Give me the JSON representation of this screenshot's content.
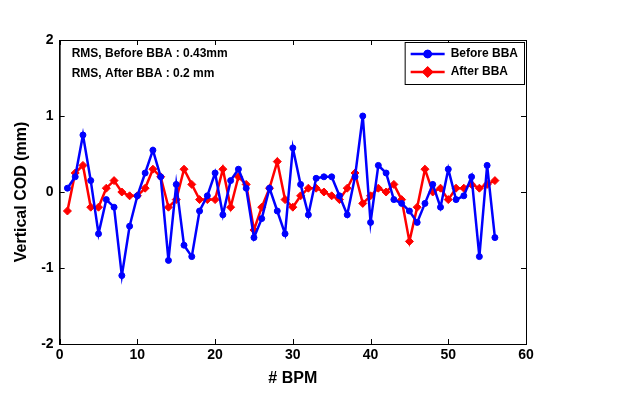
{
  "chart_data": {
    "type": "line",
    "x_label": "# BPM",
    "y_label": "Vertical COD (mm)",
    "annotations": [
      "RMS, Before BBA : 0.43mm",
      "RMS, After BBA : 0.2 mm"
    ],
    "x": [
      1,
      2,
      3,
      4,
      5,
      6,
      7,
      8,
      9,
      10,
      11,
      12,
      13,
      14,
      15,
      16,
      17,
      18,
      19,
      20,
      21,
      22,
      23,
      24,
      25,
      26,
      27,
      28,
      29,
      30,
      31,
      32,
      33,
      34,
      35,
      36,
      37,
      38,
      39,
      40,
      41,
      42,
      43,
      44,
      45,
      46,
      47,
      48,
      49,
      50,
      51,
      52,
      53,
      54,
      55,
      56
    ],
    "series": [
      {
        "name": "Before BBA",
        "color": "#0000ff",
        "marker": "circle",
        "line_style": "solid",
        "values": [
          0.05,
          0.2,
          0.75,
          0.15,
          -0.55,
          -0.1,
          -0.2,
          -1.1,
          -0.45,
          -0.05,
          0.25,
          0.55,
          0.2,
          -0.9,
          0.1,
          -0.7,
          -0.85,
          -0.25,
          -0.05,
          0.25,
          -0.3,
          0.15,
          0.3,
          0.05,
          -0.6,
          -0.35,
          0.05,
          -0.25,
          -0.55,
          0.58,
          0.1,
          -0.3,
          0.18,
          0.2,
          0.2,
          -0.05,
          -0.3,
          0.2,
          1.0,
          -0.4,
          0.35,
          0.25,
          -0.1,
          -0.15,
          -0.25,
          -0.4,
          -0.15,
          0.1,
          -0.2,
          0.3,
          -0.1,
          -0.05,
          0.2,
          -0.85,
          0.35,
          -0.6
        ]
      },
      {
        "name": "After BBA",
        "color": "#ff0000",
        "marker": "diamond",
        "line_style": "solid",
        "values": [
          -0.25,
          0.25,
          0.35,
          -0.2,
          -0.2,
          0.05,
          0.15,
          0.0,
          -0.05,
          -0.05,
          0.05,
          0.3,
          0.2,
          -0.2,
          -0.1,
          0.3,
          0.1,
          -0.1,
          -0.1,
          -0.1,
          0.3,
          -0.2,
          0.2,
          0.1,
          -0.5,
          -0.2,
          0.05,
          0.4,
          -0.1,
          -0.2,
          -0.05,
          0.05,
          0.05,
          0.0,
          -0.05,
          -0.1,
          0.05,
          0.25,
          -0.15,
          -0.05,
          0.05,
          0.0,
          0.1,
          -0.1,
          -0.65,
          -0.2,
          0.3,
          0.0,
          0.05,
          -0.1,
          0.05,
          0.05,
          0.1,
          0.05,
          0.1,
          0.15
        ]
      }
    ],
    "xlim": [
      0,
      60
    ],
    "xticks": [
      0,
      10,
      20,
      30,
      40,
      50,
      60
    ],
    "ylim": [
      -2,
      2
    ],
    "yticks": [
      -2,
      -1,
      0,
      1,
      2
    ],
    "grid": false,
    "legend": "upper right"
  }
}
